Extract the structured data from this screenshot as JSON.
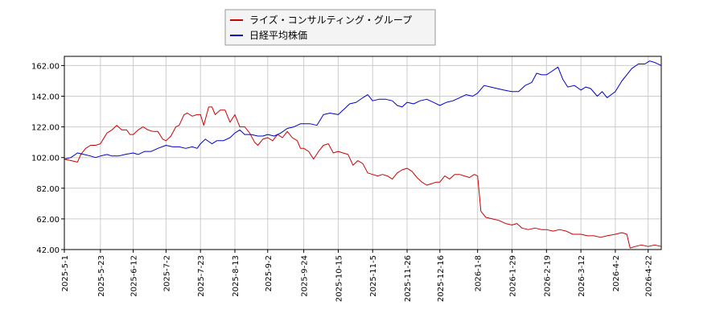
{
  "chart_data": {
    "type": "line",
    "title": "",
    "xlabel": "",
    "ylabel": "",
    "ylim": [
      42,
      168
    ],
    "yticks": [
      42.0,
      62.0,
      82.0,
      102.0,
      122.0,
      142.0,
      162.0
    ],
    "ytick_labels": [
      "42.00",
      "62.00",
      "82.00",
      "102.00",
      "122.00",
      "142.00",
      "162.00"
    ],
    "xlim": [
      "2025-05-01",
      "2026-04-30"
    ],
    "xticks": [
      "2025-05-01",
      "2025-05-23",
      "2025-06-12",
      "2025-07-02",
      "2025-07-23",
      "2025-08-13",
      "2025-09-02",
      "2025-09-24",
      "2025-10-15",
      "2025-11-05",
      "2025-11-26",
      "2025-12-16",
      "2026-01-08",
      "2026-01-29",
      "2026-02-19",
      "2026-03-12",
      "2026-04-02",
      "2026-04-22"
    ],
    "xtick_labels": [
      "2025-5-1",
      "2025-5-23",
      "2025-6-12",
      "2025-7-2",
      "2025-7-23",
      "2025-8-13",
      "2025-9-2",
      "2025-9-24",
      "2025-10-15",
      "2025-11-5",
      "2025-11-26",
      "2025-12-16",
      "2026-1-8",
      "2026-1-29",
      "2026-2-19",
      "2026-3-12",
      "2026-4-2",
      "2026-4-22"
    ],
    "grid": true,
    "legend_position": "top-center",
    "series": [
      {
        "name": "ライズ・コンサルティング・グループ",
        "color": "#cc0000",
        "points": [
          [
            "2025-05-01",
            101
          ],
          [
            "2025-05-05",
            100
          ],
          [
            "2025-05-09",
            99
          ],
          [
            "2025-05-11",
            104
          ],
          [
            "2025-05-14",
            108
          ],
          [
            "2025-05-17",
            110
          ],
          [
            "2025-05-20",
            110
          ],
          [
            "2025-05-23",
            111
          ],
          [
            "2025-05-27",
            118
          ],
          [
            "2025-05-30",
            120
          ],
          [
            "2025-06-02",
            123
          ],
          [
            "2025-06-05",
            120
          ],
          [
            "2025-06-08",
            120
          ],
          [
            "2025-06-10",
            117
          ],
          [
            "2025-06-12",
            117
          ],
          [
            "2025-06-15",
            120
          ],
          [
            "2025-06-18",
            122
          ],
          [
            "2025-06-21",
            120
          ],
          [
            "2025-06-24",
            119
          ],
          [
            "2025-06-27",
            119
          ],
          [
            "2025-06-30",
            114
          ],
          [
            "2025-07-02",
            113
          ],
          [
            "2025-07-05",
            116
          ],
          [
            "2025-07-08",
            122
          ],
          [
            "2025-07-10",
            123
          ],
          [
            "2025-07-13",
            130
          ],
          [
            "2025-07-15",
            131
          ],
          [
            "2025-07-18",
            129
          ],
          [
            "2025-07-21",
            130
          ],
          [
            "2025-07-23",
            130
          ],
          [
            "2025-07-25",
            123
          ],
          [
            "2025-07-28",
            135
          ],
          [
            "2025-07-30",
            135
          ],
          [
            "2025-08-01",
            130
          ],
          [
            "2025-08-04",
            133
          ],
          [
            "2025-08-07",
            133
          ],
          [
            "2025-08-10",
            125
          ],
          [
            "2025-08-13",
            130
          ],
          [
            "2025-08-16",
            122
          ],
          [
            "2025-08-19",
            122
          ],
          [
            "2025-08-22",
            118
          ],
          [
            "2025-08-25",
            112
          ],
          [
            "2025-08-27",
            110
          ],
          [
            "2025-08-30",
            114
          ],
          [
            "2025-09-02",
            115
          ],
          [
            "2025-09-05",
            113
          ],
          [
            "2025-09-08",
            117
          ],
          [
            "2025-09-11",
            115
          ],
          [
            "2025-09-14",
            119
          ],
          [
            "2025-09-17",
            115
          ],
          [
            "2025-09-20",
            113
          ],
          [
            "2025-09-22",
            108
          ],
          [
            "2025-09-24",
            108
          ],
          [
            "2025-09-27",
            106
          ],
          [
            "2025-09-30",
            101
          ],
          [
            "2025-10-03",
            106
          ],
          [
            "2025-10-06",
            110
          ],
          [
            "2025-10-09",
            111
          ],
          [
            "2025-10-12",
            105
          ],
          [
            "2025-10-15",
            106
          ],
          [
            "2025-10-18",
            105
          ],
          [
            "2025-10-21",
            104
          ],
          [
            "2025-10-24",
            97
          ],
          [
            "2025-10-27",
            100
          ],
          [
            "2025-10-30",
            98
          ],
          [
            "2025-11-02",
            92
          ],
          [
            "2025-11-05",
            91
          ],
          [
            "2025-11-08",
            90
          ],
          [
            "2025-11-11",
            91
          ],
          [
            "2025-11-14",
            90
          ],
          [
            "2025-11-17",
            88
          ],
          [
            "2025-11-20",
            92
          ],
          [
            "2025-11-23",
            94
          ],
          [
            "2025-11-26",
            95
          ],
          [
            "2025-11-29",
            93
          ],
          [
            "2025-12-02",
            89
          ],
          [
            "2025-12-05",
            86
          ],
          [
            "2025-12-08",
            84
          ],
          [
            "2025-12-11",
            85
          ],
          [
            "2025-12-14",
            86
          ],
          [
            "2025-12-16",
            86
          ],
          [
            "2025-12-19",
            90
          ],
          [
            "2025-12-22",
            88
          ],
          [
            "2025-12-25",
            91
          ],
          [
            "2025-12-28",
            91
          ],
          [
            "2025-12-31",
            90
          ],
          [
            "2026-01-03",
            89
          ],
          [
            "2026-01-06",
            91
          ],
          [
            "2026-01-08",
            90
          ],
          [
            "2026-01-10",
            67
          ],
          [
            "2026-01-13",
            63
          ],
          [
            "2026-01-17",
            62
          ],
          [
            "2026-01-21",
            61
          ],
          [
            "2026-01-25",
            59
          ],
          [
            "2026-01-29",
            58
          ],
          [
            "2026-02-01",
            59
          ],
          [
            "2026-02-04",
            56
          ],
          [
            "2026-02-08",
            55
          ],
          [
            "2026-02-12",
            56
          ],
          [
            "2026-02-16",
            55
          ],
          [
            "2026-02-19",
            55
          ],
          [
            "2026-02-23",
            54
          ],
          [
            "2026-02-27",
            55
          ],
          [
            "2026-03-03",
            54
          ],
          [
            "2026-03-07",
            52
          ],
          [
            "2026-03-12",
            52
          ],
          [
            "2026-03-16",
            51
          ],
          [
            "2026-03-20",
            51
          ],
          [
            "2026-03-24",
            50
          ],
          [
            "2026-03-28",
            51
          ],
          [
            "2026-04-02",
            52
          ],
          [
            "2026-04-06",
            53
          ],
          [
            "2026-04-09",
            52
          ],
          [
            "2026-04-11",
            43
          ],
          [
            "2026-04-14",
            44
          ],
          [
            "2026-04-18",
            45
          ],
          [
            "2026-04-22",
            44
          ],
          [
            "2026-04-26",
            45
          ],
          [
            "2026-04-30",
            44
          ]
        ]
      },
      {
        "name": "日経平均株価",
        "color": "#0000cc",
        "points": [
          [
            "2025-05-01",
            101
          ],
          [
            "2025-05-05",
            102
          ],
          [
            "2025-05-09",
            105
          ],
          [
            "2025-05-13",
            104
          ],
          [
            "2025-05-17",
            103
          ],
          [
            "2025-05-20",
            102
          ],
          [
            "2025-05-23",
            103
          ],
          [
            "2025-05-27",
            104
          ],
          [
            "2025-05-30",
            103
          ],
          [
            "2025-06-03",
            103
          ],
          [
            "2025-06-07",
            104
          ],
          [
            "2025-06-12",
            105
          ],
          [
            "2025-06-15",
            104
          ],
          [
            "2025-06-19",
            106
          ],
          [
            "2025-06-23",
            106
          ],
          [
            "2025-06-27",
            108
          ],
          [
            "2025-07-02",
            110
          ],
          [
            "2025-07-06",
            109
          ],
          [
            "2025-07-10",
            109
          ],
          [
            "2025-07-14",
            108
          ],
          [
            "2025-07-18",
            109
          ],
          [
            "2025-07-21",
            108
          ],
          [
            "2025-07-23",
            111
          ],
          [
            "2025-07-26",
            114
          ],
          [
            "2025-07-30",
            111
          ],
          [
            "2025-08-02",
            113
          ],
          [
            "2025-08-06",
            113
          ],
          [
            "2025-08-10",
            115
          ],
          [
            "2025-08-13",
            118
          ],
          [
            "2025-08-16",
            120
          ],
          [
            "2025-08-19",
            117
          ],
          [
            "2025-08-23",
            117
          ],
          [
            "2025-08-27",
            116
          ],
          [
            "2025-08-30",
            116
          ],
          [
            "2025-09-02",
            117
          ],
          [
            "2025-09-06",
            116
          ],
          [
            "2025-09-10",
            118
          ],
          [
            "2025-09-14",
            121
          ],
          [
            "2025-09-18",
            122
          ],
          [
            "2025-09-22",
            124
          ],
          [
            "2025-09-24",
            124
          ],
          [
            "2025-09-28",
            124
          ],
          [
            "2025-10-02",
            123
          ],
          [
            "2025-10-06",
            130
          ],
          [
            "2025-10-10",
            131
          ],
          [
            "2025-10-15",
            130
          ],
          [
            "2025-10-18",
            133
          ],
          [
            "2025-10-22",
            137
          ],
          [
            "2025-10-26",
            138
          ],
          [
            "2025-10-30",
            141
          ],
          [
            "2025-11-02",
            143
          ],
          [
            "2025-11-05",
            139
          ],
          [
            "2025-11-09",
            140
          ],
          [
            "2025-11-13",
            140
          ],
          [
            "2025-11-17",
            139
          ],
          [
            "2025-11-20",
            136
          ],
          [
            "2025-11-23",
            135
          ],
          [
            "2025-11-26",
            138
          ],
          [
            "2025-11-30",
            137
          ],
          [
            "2025-12-04",
            139
          ],
          [
            "2025-12-08",
            140
          ],
          [
            "2025-12-12",
            138
          ],
          [
            "2025-12-16",
            136
          ],
          [
            "2025-12-20",
            138
          ],
          [
            "2025-12-24",
            139
          ],
          [
            "2025-12-28",
            141
          ],
          [
            "2026-01-01",
            143
          ],
          [
            "2026-01-05",
            142
          ],
          [
            "2026-01-08",
            144
          ],
          [
            "2026-01-12",
            149
          ],
          [
            "2026-01-16",
            148
          ],
          [
            "2026-01-20",
            147
          ],
          [
            "2026-01-24",
            146
          ],
          [
            "2026-01-29",
            145
          ],
          [
            "2026-02-02",
            145
          ],
          [
            "2026-02-06",
            149
          ],
          [
            "2026-02-10",
            151
          ],
          [
            "2026-02-13",
            157
          ],
          [
            "2026-02-16",
            156
          ],
          [
            "2026-02-19",
            156
          ],
          [
            "2026-02-22",
            158
          ],
          [
            "2026-02-26",
            161
          ],
          [
            "2026-03-01",
            153
          ],
          [
            "2026-03-04",
            148
          ],
          [
            "2026-03-08",
            149
          ],
          [
            "2026-03-12",
            146
          ],
          [
            "2026-03-15",
            148
          ],
          [
            "2026-03-18",
            147
          ],
          [
            "2026-03-22",
            142
          ],
          [
            "2026-03-25",
            145
          ],
          [
            "2026-03-28",
            141
          ],
          [
            "2026-04-02",
            145
          ],
          [
            "2026-04-06",
            152
          ],
          [
            "2026-04-09",
            156
          ],
          [
            "2026-04-12",
            160
          ],
          [
            "2026-04-16",
            163
          ],
          [
            "2026-04-20",
            163
          ],
          [
            "2026-04-23",
            165
          ],
          [
            "2026-04-26",
            164
          ],
          [
            "2026-04-30",
            162
          ]
        ]
      }
    ]
  }
}
